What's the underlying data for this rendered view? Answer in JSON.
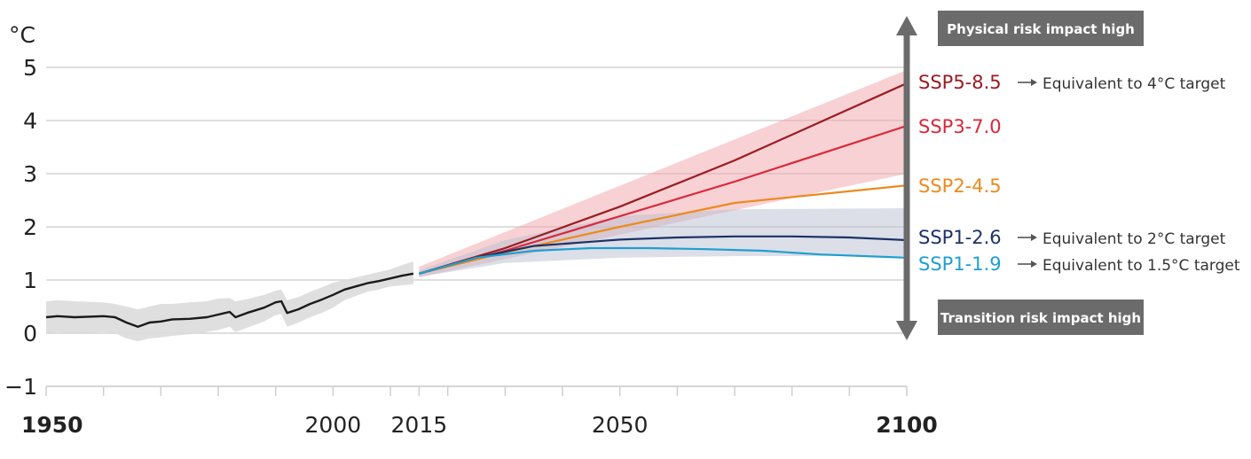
{
  "chart_data": {
    "type": "line",
    "ylabel": "°C",
    "ylim": [
      -1,
      5
    ],
    "xlim": [
      1950,
      2100
    ],
    "y_ticks": [
      "5",
      "4",
      "3",
      "2",
      "1",
      "0",
      "−1"
    ],
    "y_tick_values": [
      5,
      4,
      3,
      2,
      1,
      0,
      -1
    ],
    "x_tick_labels": [
      {
        "value": 1950,
        "label": "1950",
        "bold": true
      },
      {
        "value": 2000,
        "label": "2000",
        "bold": false
      },
      {
        "value": 2015,
        "label": "2015",
        "bold": false
      },
      {
        "value": 2050,
        "label": "2050",
        "bold": false
      },
      {
        "value": 2100,
        "label": "2100",
        "bold": true
      }
    ],
    "x_minor_ticks": [
      1950,
      1960,
      1970,
      1980,
      1990,
      2000,
      2010,
      2015,
      2020,
      2030,
      2040,
      2050,
      2060,
      2070,
      2080,
      2090,
      2100
    ],
    "grid": true,
    "historical": {
      "color": "#1a1a1a",
      "x": [
        1950,
        1952,
        1955,
        1960,
        1962,
        1964,
        1966,
        1968,
        1970,
        1972,
        1975,
        1978,
        1980,
        1982,
        1983,
        1985,
        1988,
        1990,
        1991,
        1992,
        1994,
        1996,
        1998,
        2000,
        2002,
        2004,
        2006,
        2008,
        2010,
        2012,
        2014
      ],
      "y": [
        0.3,
        0.32,
        0.3,
        0.32,
        0.3,
        0.2,
        0.12,
        0.2,
        0.22,
        0.26,
        0.27,
        0.3,
        0.35,
        0.4,
        0.3,
        0.38,
        0.48,
        0.58,
        0.6,
        0.38,
        0.45,
        0.55,
        0.63,
        0.72,
        0.82,
        0.88,
        0.94,
        0.98,
        1.03,
        1.08,
        1.12
      ],
      "band_upper": [
        0.6,
        0.62,
        0.6,
        0.58,
        0.55,
        0.5,
        0.45,
        0.5,
        0.55,
        0.55,
        0.58,
        0.6,
        0.65,
        0.66,
        0.6,
        0.64,
        0.72,
        0.8,
        0.82,
        0.62,
        0.68,
        0.78,
        0.86,
        0.95,
        1.0,
        1.05,
        1.1,
        1.15,
        1.2,
        1.28,
        1.35
      ],
      "band_lower": [
        0.0,
        0.02,
        0.0,
        0.02,
        0.0,
        -0.1,
        -0.15,
        -0.1,
        -0.08,
        -0.05,
        -0.02,
        0.02,
        0.06,
        0.12,
        0.02,
        0.1,
        0.22,
        0.34,
        0.36,
        0.12,
        0.2,
        0.3,
        0.38,
        0.48,
        0.62,
        0.7,
        0.78,
        0.82,
        0.88,
        0.9,
        0.92
      ]
    },
    "projection_x": [
      2015,
      2100
    ],
    "series": [
      {
        "name": "SSP5-8.5",
        "color": "#9b1b22",
        "x": [
          2015,
          2030,
          2050,
          2070,
          2100
        ],
        "y": [
          1.12,
          1.6,
          2.38,
          3.25,
          4.7
        ],
        "equivalent": "Equivalent to 4°C target"
      },
      {
        "name": "SSP3-7.0",
        "color": "#dc2738",
        "x": [
          2015,
          2030,
          2050,
          2070,
          2100
        ],
        "y": [
          1.12,
          1.55,
          2.2,
          2.85,
          3.9
        ],
        "equivalent": ""
      },
      {
        "name": "SSP2-4.5",
        "color": "#ec8a1c",
        "x": [
          2015,
          2030,
          2050,
          2070,
          2100
        ],
        "y": [
          1.12,
          1.52,
          2.0,
          2.45,
          2.78
        ],
        "equivalent": ""
      },
      {
        "name": "SSP1-2.6",
        "color": "#1b3366",
        "x": [
          2015,
          2025,
          2035,
          2045,
          2050,
          2060,
          2070,
          2080,
          2090,
          2100
        ],
        "y": [
          1.12,
          1.42,
          1.64,
          1.72,
          1.76,
          1.8,
          1.82,
          1.82,
          1.8,
          1.75
        ],
        "equivalent": "Equivalent to 2°C target"
      },
      {
        "name": "SSP1-1.9",
        "color": "#1f9fd0",
        "x": [
          2015,
          2025,
          2035,
          2045,
          2055,
          2065,
          2075,
          2085,
          2100
        ],
        "y": [
          1.12,
          1.42,
          1.55,
          1.6,
          1.6,
          1.58,
          1.55,
          1.48,
          1.42
        ],
        "equivalent": "Equivalent to 1.5°C target"
      }
    ],
    "bands": [
      {
        "name": "SSP5-8.5 / SSP3-7.0 range",
        "color": "#f0a3aa",
        "x": [
          2015,
          2100
        ],
        "upper": [
          1.25,
          4.95
        ],
        "lower": [
          1.05,
          3.0
        ]
      },
      {
        "name": "SSP1-2.6 range",
        "color": "#b9c0d2",
        "x": [
          2015,
          2030,
          2050,
          2070,
          2100
        ],
        "upper": [
          1.18,
          1.75,
          2.2,
          2.33,
          2.35
        ],
        "lower": [
          1.06,
          1.32,
          1.42,
          1.45,
          1.45
        ]
      }
    ],
    "risk_arrow": {
      "top_label": "Physical risk impact high",
      "bottom_label": "Transition risk impact high",
      "color": "#6b6b6b"
    }
  }
}
